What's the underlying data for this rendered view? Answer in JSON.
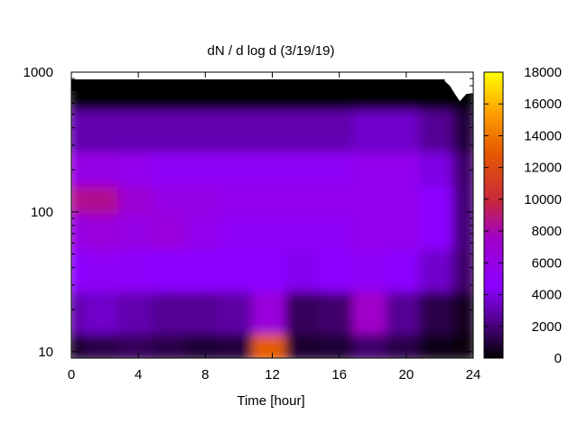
{
  "chart_data": {
    "type": "heatmap",
    "title": "dN / d log d (3/19/19)",
    "xlabel": "Time [hour]",
    "ylabel": "",
    "x_ticks": [
      "0",
      "4",
      "8",
      "12",
      "16",
      "20",
      "24"
    ],
    "y_ticks": [
      "1000",
      "100",
      "10"
    ],
    "y_scale": "log",
    "xlim": [
      0,
      24
    ],
    "ylim": [
      9,
      1000
    ],
    "colorbar": {
      "min": 0,
      "max": 18000,
      "ticks": [
        "18000",
        "16000",
        "14000",
        "12000",
        "10000",
        "8000",
        "6000",
        "4000",
        "2000",
        "0"
      ],
      "palette": [
        "#000000",
        "#4b0082",
        "#8c00ff",
        "#a000c8",
        "#c8283c",
        "#e65a00",
        "#ffa000",
        "#ffff00"
      ]
    },
    "hours": [
      0,
      2,
      4,
      6,
      8,
      10,
      12,
      14,
      16,
      18,
      20,
      22,
      24
    ],
    "diameters": [
      10,
      20,
      40,
      80,
      130,
      200,
      400,
      800
    ],
    "concentration": [
      [
        800,
        1200,
        1500,
        1200,
        900,
        1000,
        13000,
        800,
        900,
        1800,
        1200,
        400,
        200
      ],
      [
        3000,
        3500,
        3000,
        2500,
        2500,
        2800,
        6500,
        1500,
        1800,
        7500,
        2500,
        1200,
        600
      ],
      [
        4500,
        5000,
        4800,
        4500,
        4500,
        4500,
        4500,
        4200,
        4500,
        5000,
        4500,
        3500,
        1800
      ],
      [
        6000,
        6500,
        6000,
        6500,
        5500,
        5000,
        5000,
        5000,
        5000,
        5500,
        5500,
        4500,
        2000
      ],
      [
        8500,
        8500,
        7000,
        6000,
        6000,
        5500,
        5500,
        5500,
        5500,
        5500,
        5500,
        4500,
        2000
      ],
      [
        6000,
        6000,
        5500,
        5000,
        5000,
        5000,
        5000,
        5000,
        5000,
        5500,
        5500,
        4000,
        1800
      ],
      [
        3000,
        3000,
        3000,
        3000,
        3000,
        3000,
        3000,
        3000,
        3000,
        3500,
        3500,
        2500,
        1000
      ],
      [
        0,
        0,
        0,
        0,
        0,
        0,
        0,
        0,
        0,
        0,
        0,
        0,
        0
      ]
    ]
  }
}
